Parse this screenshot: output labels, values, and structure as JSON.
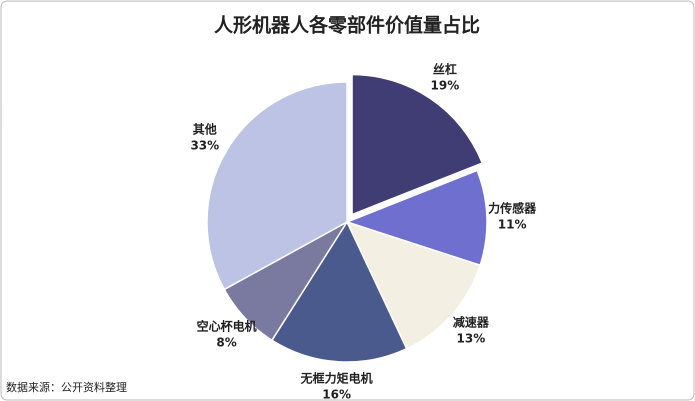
{
  "chart_data": {
    "type": "pie",
    "title": "人形机器人各零部件价值量占比",
    "categories": [
      "丝杠",
      "力传感器",
      "减速器",
      "无框力矩电机",
      "空心杯电机",
      "其他"
    ],
    "values": [
      19,
      11,
      13,
      16,
      8,
      33
    ],
    "value_labels": [
      "19%",
      "11%",
      "13%",
      "16%",
      "8%",
      "33%"
    ],
    "colors": [
      "#3f3d74",
      "#6f6fd0",
      "#f3efe3",
      "#4a5a8c",
      "#7a7aa0",
      "#bcc3e4"
    ],
    "explode": [
      true,
      false,
      false,
      false,
      false,
      false
    ],
    "source": "数据来源：公开资料整理"
  }
}
